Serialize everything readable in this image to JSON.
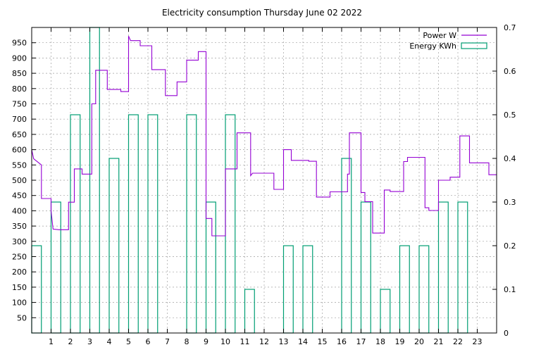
{
  "chart_data": {
    "type": "line",
    "title": "Electricity consumption Thursday June 02 2022",
    "grid": true,
    "legend_position": "top-right",
    "x": {
      "range": [
        0,
        24
      ],
      "ticks": [
        1,
        2,
        3,
        4,
        5,
        6,
        7,
        8,
        9,
        10,
        11,
        12,
        13,
        14,
        15,
        16,
        17,
        18,
        19,
        20,
        21,
        22,
        23
      ],
      "tick_labels": [
        "1",
        "2",
        "3",
        "4",
        "5",
        "6",
        "7",
        "8",
        "9",
        "10",
        "11",
        "12",
        "13",
        "14",
        "15",
        "16",
        "17",
        "18",
        "19",
        "20",
        "21",
        "22",
        "23"
      ]
    },
    "y_left": {
      "range": [
        0,
        1000
      ],
      "ticks": [
        50,
        100,
        150,
        200,
        250,
        300,
        350,
        400,
        450,
        500,
        550,
        600,
        650,
        700,
        750,
        800,
        850,
        900,
        950
      ],
      "tick_labels": [
        "50",
        "100",
        "150",
        "200",
        "250",
        "300",
        "350",
        "400",
        "450",
        "500",
        "550",
        "600",
        "650",
        "700",
        "750",
        "800",
        "850",
        "900",
        "950"
      ]
    },
    "y_right": {
      "range": [
        0,
        0.7
      ],
      "ticks": [
        0,
        0.1,
        0.2,
        0.3,
        0.4,
        0.5,
        0.6,
        0.7
      ],
      "tick_labels": [
        "0",
        "0.1",
        "0.2",
        "0.3",
        "0.4",
        "0.5",
        "0.6",
        "0.7"
      ]
    },
    "series": [
      {
        "name": "Power W",
        "axis": "left",
        "style": "step",
        "color": "#9400d3",
        "points": [
          [
            0,
            600
          ],
          [
            0.1,
            570
          ],
          [
            0.5,
            550
          ],
          [
            0.5,
            440
          ],
          [
            1.0,
            440
          ],
          [
            1.0,
            400
          ],
          [
            1.1,
            340
          ],
          [
            1.4,
            338
          ],
          [
            1.9,
            338
          ],
          [
            1.9,
            428
          ],
          [
            2.2,
            428
          ],
          [
            2.2,
            537
          ],
          [
            2.6,
            537
          ],
          [
            2.6,
            520
          ],
          [
            3.1,
            520
          ],
          [
            3.1,
            750
          ],
          [
            3.3,
            750
          ],
          [
            3.3,
            860
          ],
          [
            3.9,
            860
          ],
          [
            3.9,
            797
          ],
          [
            4.6,
            797
          ],
          [
            4.6,
            790
          ],
          [
            5.0,
            790
          ],
          [
            5.0,
            972
          ],
          [
            5.1,
            957
          ],
          [
            5.6,
            957
          ],
          [
            5.6,
            940
          ],
          [
            6.2,
            940
          ],
          [
            6.2,
            862
          ],
          [
            6.9,
            862
          ],
          [
            6.9,
            777
          ],
          [
            7.5,
            777
          ],
          [
            7.5,
            822
          ],
          [
            8.0,
            822
          ],
          [
            8.0,
            893
          ],
          [
            8.6,
            893
          ],
          [
            8.6,
            921
          ],
          [
            9.0,
            921
          ],
          [
            9.0,
            375
          ],
          [
            9.3,
            375
          ],
          [
            9.3,
            318
          ],
          [
            10.0,
            318
          ],
          [
            10.0,
            537
          ],
          [
            10.6,
            537
          ],
          [
            10.6,
            655
          ],
          [
            11.3,
            655
          ],
          [
            11.3,
            515
          ],
          [
            11.4,
            523
          ],
          [
            12.5,
            523
          ],
          [
            12.5,
            470
          ],
          [
            13.0,
            470
          ],
          [
            13.0,
            600
          ],
          [
            13.4,
            600
          ],
          [
            13.4,
            565
          ],
          [
            14.3,
            565
          ],
          [
            14.3,
            562
          ],
          [
            14.7,
            562
          ],
          [
            14.7,
            445
          ],
          [
            15.4,
            445
          ],
          [
            15.4,
            462
          ],
          [
            16.3,
            462
          ],
          [
            16.3,
            520
          ],
          [
            16.4,
            520
          ],
          [
            16.4,
            655
          ],
          [
            17.0,
            655
          ],
          [
            17.0,
            460
          ],
          [
            17.2,
            460
          ],
          [
            17.2,
            430
          ],
          [
            17.6,
            430
          ],
          [
            17.6,
            327
          ],
          [
            18.2,
            327
          ],
          [
            18.2,
            468
          ],
          [
            18.5,
            468
          ],
          [
            18.5,
            463
          ],
          [
            19.2,
            463
          ],
          [
            19.2,
            561
          ],
          [
            19.4,
            561
          ],
          [
            19.4,
            575
          ],
          [
            20.3,
            575
          ],
          [
            20.3,
            410
          ],
          [
            20.5,
            410
          ],
          [
            20.5,
            401
          ],
          [
            21.0,
            401
          ],
          [
            21.0,
            500
          ],
          [
            21.6,
            500
          ],
          [
            21.6,
            510
          ],
          [
            22.1,
            510
          ],
          [
            22.1,
            645
          ],
          [
            22.6,
            645
          ],
          [
            22.6,
            557
          ],
          [
            23.6,
            557
          ],
          [
            23.6,
            518
          ],
          [
            24.0,
            518
          ]
        ]
      },
      {
        "name": "Energy KWh",
        "axis": "right",
        "style": "boxes",
        "color": "#009e73",
        "box_width": 0.5,
        "bars": [
          [
            0,
            0.2
          ],
          [
            1,
            0.3
          ],
          [
            2,
            0.5
          ],
          [
            3,
            0.7
          ],
          [
            4,
            0.4
          ],
          [
            5,
            0.5
          ],
          [
            6,
            0.5
          ],
          [
            7,
            0
          ],
          [
            8,
            0.5
          ],
          [
            9,
            0.3
          ],
          [
            10,
            0.5
          ],
          [
            11,
            0.1
          ],
          [
            12,
            0
          ],
          [
            13,
            0.2
          ],
          [
            14,
            0.2
          ],
          [
            15,
            0
          ],
          [
            16,
            0.4
          ],
          [
            17,
            0.3
          ],
          [
            18,
            0.1
          ],
          [
            19,
            0.2
          ],
          [
            20,
            0.2
          ],
          [
            21,
            0.3
          ],
          [
            22,
            0.3
          ],
          [
            23,
            0
          ]
        ]
      }
    ]
  }
}
